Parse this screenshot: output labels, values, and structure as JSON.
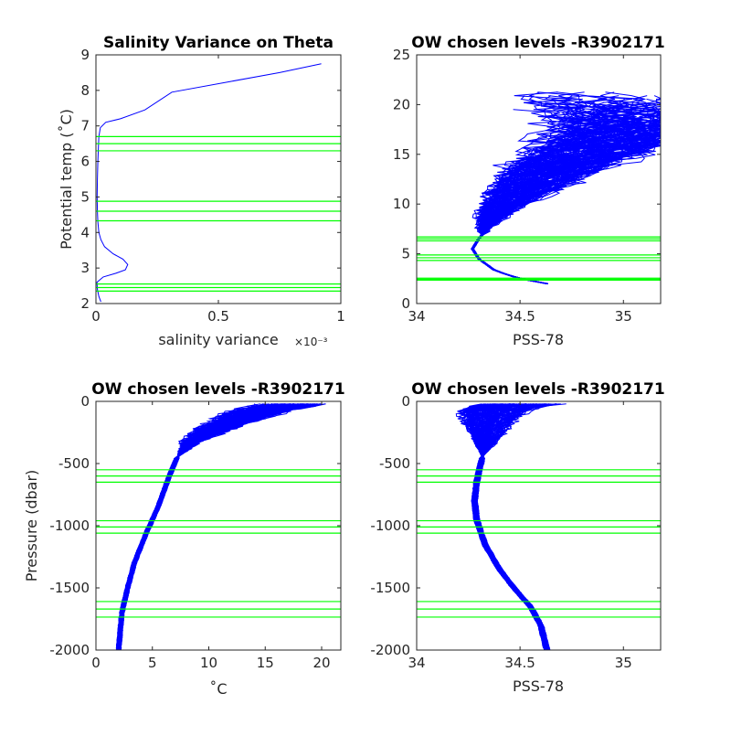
{
  "colors": {
    "profile": "#0000ff",
    "level": "#00ff00",
    "axis": "#262626",
    "background": "#ffffff"
  },
  "chart_data": [
    {
      "type": "line",
      "title": "Salinity Variance on Theta",
      "xlabel": "salinity variance",
      "x_exponent": "×10⁻³",
      "ylabel": "Potential temp (˚C)",
      "xlim": [
        0,
        1
      ],
      "ylim": [
        2,
        9
      ],
      "xticks": [
        "0",
        "0.5",
        "1"
      ],
      "yticks": [
        "2",
        "3",
        "4",
        "5",
        "6",
        "7",
        "8",
        "9"
      ],
      "series": [
        {
          "x": [
            0.02,
            0.012,
            0.006,
            0.004,
            0.03,
            0.08,
            0.12,
            0.13,
            0.11,
            0.07,
            0.035,
            0.02,
            0.012,
            0.008,
            0.006,
            0.005,
            0.006,
            0.008,
            0.01,
            0.012,
            0.018,
            0.04,
            0.1,
            0.2,
            0.31,
            0.55,
            0.75,
            0.92
          ],
          "y": [
            2.05,
            2.2,
            2.4,
            2.6,
            2.75,
            2.85,
            2.95,
            3.1,
            3.25,
            3.4,
            3.6,
            3.8,
            4.0,
            4.3,
            4.6,
            5.0,
            5.5,
            6.0,
            6.4,
            6.7,
            6.95,
            7.1,
            7.2,
            7.45,
            7.95,
            8.25,
            8.5,
            8.75
          ]
        }
      ],
      "levels": [
        2.35,
        2.45,
        2.55,
        4.33,
        4.6,
        4.88,
        6.3,
        6.5,
        6.7
      ]
    },
    {
      "type": "line",
      "title": "OW chosen levels -R3902171",
      "xlabel": "PSS-78",
      "ylabel": "",
      "xlim": [
        34,
        35.18
      ],
      "ylim": [
        0,
        25
      ],
      "xticks": [
        "34",
        "34.5",
        "35"
      ],
      "yticks": [
        "0",
        "5",
        "10",
        "15",
        "20",
        "25"
      ],
      "profile_count": 120,
      "mean_profile": {
        "x": [
          34.63,
          34.5,
          34.38,
          34.3,
          34.27,
          34.3,
          34.32,
          34.33,
          34.36,
          34.4,
          34.5,
          34.6,
          34.7,
          34.82,
          34.95,
          35.05
        ],
        "y": [
          2.0,
          2.5,
          3.3,
          4.5,
          5.5,
          6.5,
          7.0,
          7.7,
          8.5,
          9.5,
          11.0,
          12.5,
          13.8,
          15.0,
          16.3,
          17.5
        ]
      },
      "levels": [
        2.35,
        2.45,
        2.55,
        4.33,
        4.6,
        4.88,
        6.3,
        6.5,
        6.7
      ]
    },
    {
      "type": "line",
      "title": "OW chosen levels -R3902171",
      "xlabel": "˚C",
      "ylabel": "Pressure (dbar)",
      "xlim": [
        0,
        21.7
      ],
      "ylim": [
        -2000,
        0
      ],
      "xticks": [
        "0",
        "5",
        "10",
        "15",
        "20"
      ],
      "yticks": [
        "-2000",
        "-1500",
        "-1000",
        "-500",
        "0"
      ],
      "profile_count": 120,
      "mean_profile": {
        "x": [
          2.0,
          2.3,
          2.8,
          3.4,
          4.5,
          5.5,
          6.5,
          7.2,
          8.5,
          10.5,
          12.5,
          14.5,
          16.5,
          18.0
        ],
        "y": [
          -2000,
          -1700,
          -1500,
          -1300,
          -1050,
          -850,
          -600,
          -450,
          -320,
          -220,
          -140,
          -80,
          -35,
          -5
        ]
      },
      "levels": [
        -550,
        -600,
        -650,
        -960,
        -1010,
        -1060,
        -1610,
        -1670,
        -1735
      ]
    },
    {
      "type": "line",
      "title": "OW chosen levels -R3902171",
      "xlabel": "PSS-78",
      "ylabel": "",
      "xlim": [
        34,
        35.18
      ],
      "ylim": [
        -2000,
        0
      ],
      "xticks": [
        "34",
        "34.5",
        "35"
      ],
      "yticks": [
        "-2000",
        "-1500",
        "-1000",
        "-500",
        "0"
      ],
      "profile_count": 120,
      "mean_profile": {
        "x": [
          34.63,
          34.6,
          34.55,
          34.47,
          34.4,
          34.33,
          34.29,
          34.28,
          34.29,
          34.31,
          34.33,
          34.34,
          34.35,
          34.37,
          34.45,
          34.6
        ],
        "y": [
          -2000,
          -1800,
          -1650,
          -1500,
          -1350,
          -1150,
          -950,
          -800,
          -650,
          -500,
          -350,
          -250,
          -150,
          -80,
          -30,
          -5
        ]
      },
      "levels": [
        -550,
        -600,
        -650,
        -960,
        -1010,
        -1060,
        -1610,
        -1670,
        -1735
      ]
    }
  ]
}
